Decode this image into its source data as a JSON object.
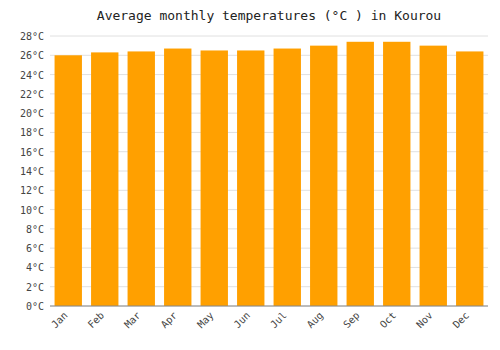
{
  "chart_data": {
    "type": "bar",
    "title": "Average monthly temperatures (°C ) in Kourou",
    "categories": [
      "Jan",
      "Feb",
      "Mar",
      "Apr",
      "May",
      "Jun",
      "Jul",
      "Aug",
      "Sep",
      "Oct",
      "Nov",
      "Dec"
    ],
    "values": [
      26.0,
      26.3,
      26.4,
      26.7,
      26.5,
      26.5,
      26.7,
      27.0,
      27.4,
      27.4,
      27.0,
      26.4
    ],
    "color": "#FFA000",
    "ylim": [
      0,
      28
    ],
    "yticks": [
      {
        "value": 0,
        "label": "0°C"
      },
      {
        "value": 2,
        "label": "2°C"
      },
      {
        "value": 4,
        "label": "4°C"
      },
      {
        "value": 6,
        "label": "6°C"
      },
      {
        "value": 8,
        "label": "8°C"
      },
      {
        "value": 10,
        "label": "10°C"
      },
      {
        "value": 12,
        "label": "12°C"
      },
      {
        "value": 14,
        "label": "14°C"
      },
      {
        "value": 16,
        "label": "16°C"
      },
      {
        "value": 18,
        "label": "18°C"
      },
      {
        "value": 20,
        "label": "20°C"
      },
      {
        "value": 22,
        "label": "22°C"
      },
      {
        "value": 24,
        "label": "24°C"
      },
      {
        "value": 26,
        "label": "26°C"
      },
      {
        "value": 28,
        "label": "28°C"
      }
    ],
    "grid": true
  }
}
